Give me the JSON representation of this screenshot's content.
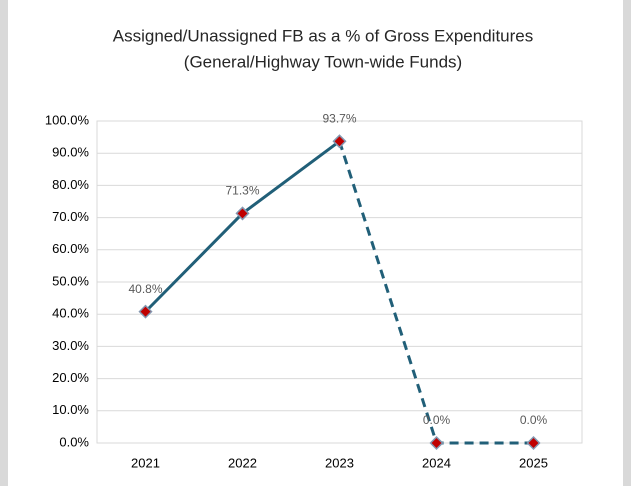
{
  "chart_data": {
    "type": "line",
    "title": "Assigned/Unassigned FB as a % of Gross Expenditures",
    "subtitle": "(General/Highway Town-wide Funds)",
    "categories": [
      "2021",
      "2022",
      "2023",
      "2024",
      "2025"
    ],
    "series": [
      {
        "color": "#215f78",
        "marker_color": "#c00000",
        "values": [
          40.8,
          71.3,
          93.7,
          0,
          0
        ],
        "value_labels": [
          "40.8%",
          "71.3%",
          "93.7%",
          "0.0%",
          "0.0%"
        ],
        "segment_styles": [
          "solid",
          "solid",
          "dashed",
          "dashed"
        ]
      }
    ],
    "ylim": [
      0,
      100
    ],
    "yticks": [
      {
        "value": 0,
        "label": "0.0%"
      },
      {
        "value": 10,
        "label": "10.0%"
      },
      {
        "value": 20,
        "label": "20.0%"
      },
      {
        "value": 30,
        "label": "30.0%"
      },
      {
        "value": 40,
        "label": "40.0%"
      },
      {
        "value": 50,
        "label": "50.0%"
      },
      {
        "value": 60,
        "label": "60.0%"
      },
      {
        "value": 70,
        "label": "70.0%"
      },
      {
        "value": 80,
        "label": "80.0%"
      },
      {
        "value": 90,
        "label": "90.0%"
      },
      {
        "value": 100,
        "label": "100.0%"
      }
    ],
    "grid": true
  }
}
